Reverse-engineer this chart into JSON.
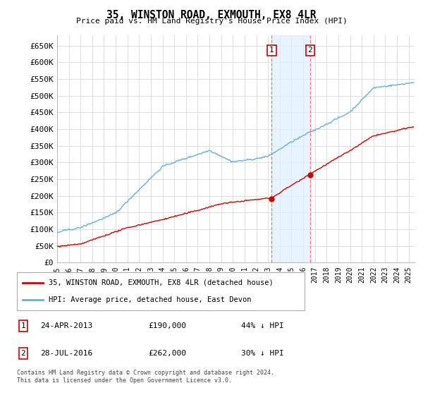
{
  "title": "35, WINSTON ROAD, EXMOUTH, EX8 4LR",
  "subtitle": "Price paid vs. HM Land Registry's House Price Index (HPI)",
  "ylabel_ticks": [
    "£0",
    "£50K",
    "£100K",
    "£150K",
    "£200K",
    "£250K",
    "£300K",
    "£350K",
    "£400K",
    "£450K",
    "£500K",
    "£550K",
    "£600K",
    "£650K"
  ],
  "ytick_values": [
    0,
    50000,
    100000,
    150000,
    200000,
    250000,
    300000,
    350000,
    400000,
    450000,
    500000,
    550000,
    600000,
    650000
  ],
  "ylim": [
    0,
    680000
  ],
  "xlim_start": 1995.0,
  "xlim_end": 2025.5,
  "hpi_color": "#6aaed6",
  "price_color": "#cc0000",
  "transaction1_x": 2013.31,
  "transaction1_y": 190000,
  "transaction2_x": 2016.58,
  "transaction2_y": 262000,
  "transaction1_label": "24-APR-2013",
  "transaction1_price": "£190,000",
  "transaction1_pct": "44% ↓ HPI",
  "transaction2_label": "28-JUL-2016",
  "transaction2_price": "£262,000",
  "transaction2_pct": "30% ↓ HPI",
  "legend_line1": "35, WINSTON ROAD, EXMOUTH, EX8 4LR (detached house)",
  "legend_line2": "HPI: Average price, detached house, East Devon",
  "footer1": "Contains HM Land Registry data © Crown copyright and database right 2024.",
  "footer2": "This data is licensed under the Open Government Licence v3.0.",
  "background_color": "#ffffff",
  "plot_bg_color": "#ffffff",
  "grid_color": "#dddddd"
}
